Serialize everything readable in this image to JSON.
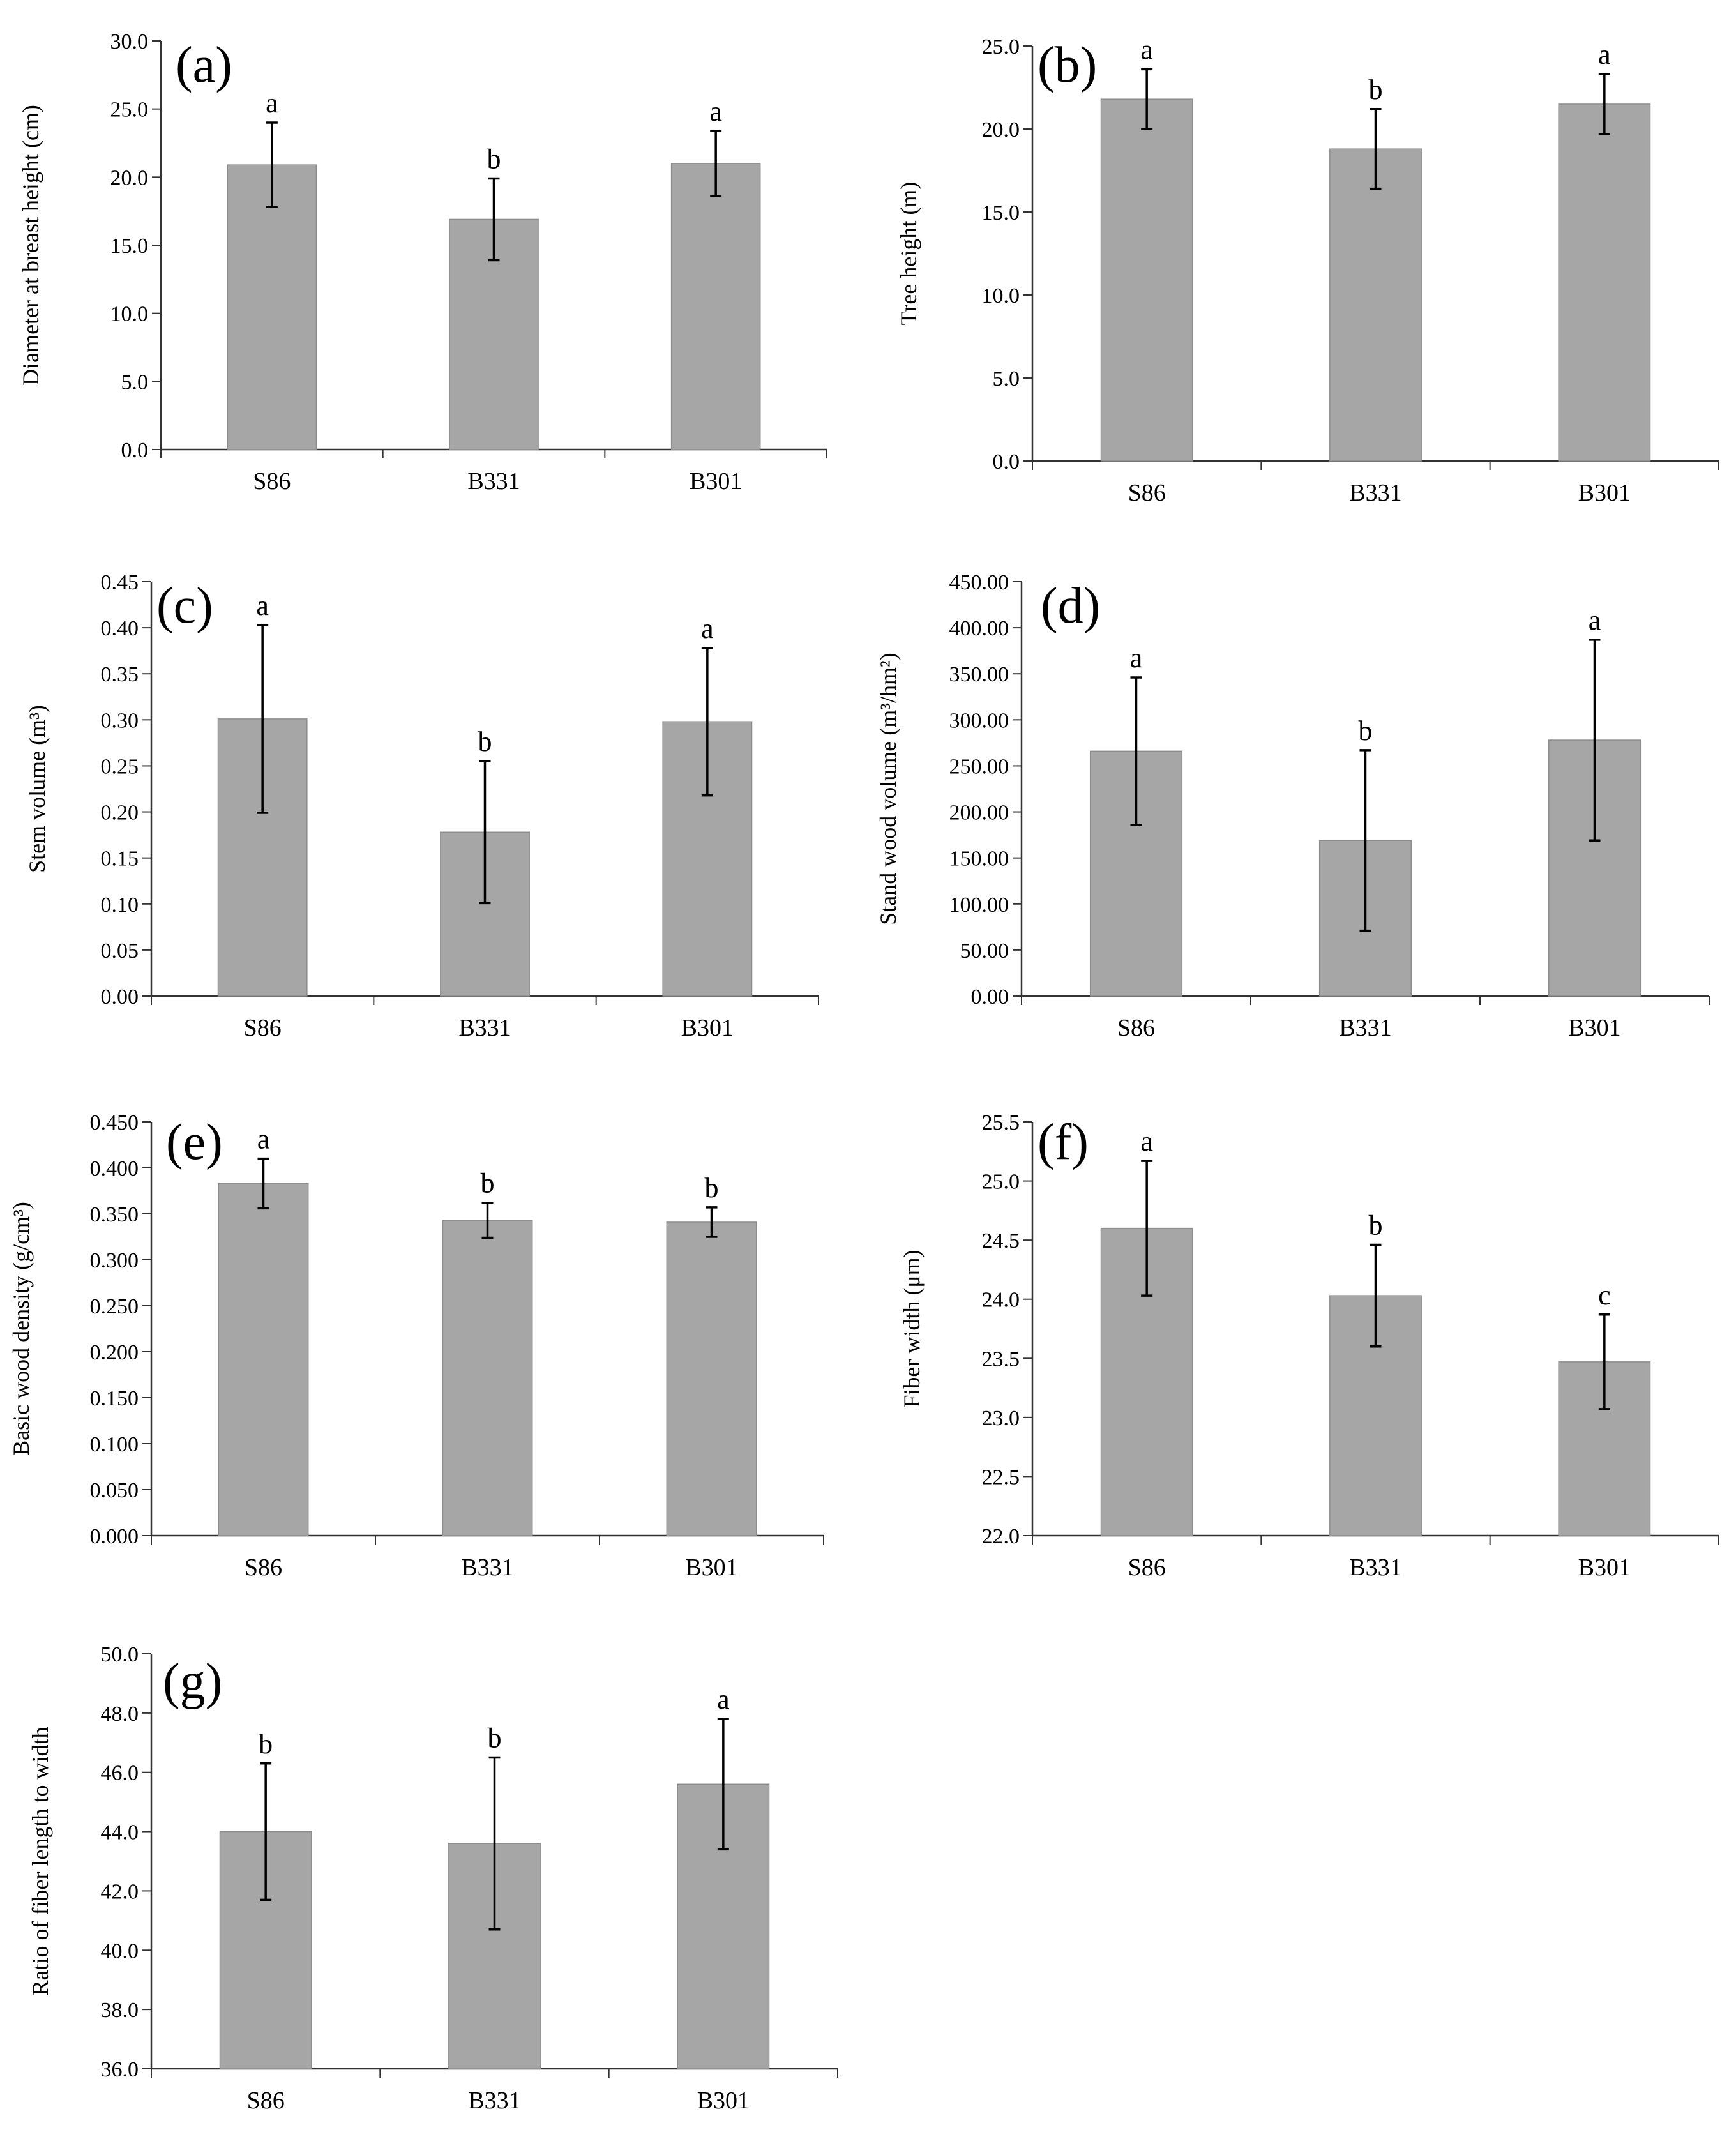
{
  "figure": {
    "colors": {
      "bar": "#a6a6a6",
      "bar_edge": "#8c8c8c",
      "axis": "#333333",
      "error": "#000000"
    }
  },
  "chart_data": [
    {
      "id": "a",
      "panel_label": "(a)",
      "type": "bar",
      "ylabel": "Diameter at breast height (cm)",
      "categories": [
        "S86",
        "B331",
        "B301"
      ],
      "values": [
        20.9,
        16.9,
        21.0
      ],
      "errors": [
        3.1,
        3.0,
        2.4
      ],
      "letters": [
        "a",
        "b",
        "a"
      ],
      "ylim": [
        0,
        30
      ],
      "yticks": [
        "0.0",
        "5.0",
        "10.0",
        "15.0",
        "20.0",
        "25.0",
        "30.0"
      ]
    },
    {
      "id": "b",
      "panel_label": "(b)",
      "type": "bar",
      "ylabel": "Tree height (m)",
      "categories": [
        "S86",
        "B331",
        "B301"
      ],
      "values": [
        21.8,
        18.8,
        21.5
      ],
      "errors": [
        1.8,
        2.4,
        1.8
      ],
      "letters": [
        "a",
        "b",
        "a"
      ],
      "ylim": [
        0,
        25
      ],
      "yticks": [
        "0.0",
        "5.0",
        "10.0",
        "15.0",
        "20.0",
        "25.0"
      ]
    },
    {
      "id": "c",
      "panel_label": "(c)",
      "type": "bar",
      "ylabel": "Stem volume (m³)",
      "categories": [
        "S86",
        "B331",
        "B301"
      ],
      "values": [
        0.301,
        0.178,
        0.298
      ],
      "errors": [
        0.102,
        0.077,
        0.08
      ],
      "letters": [
        "a",
        "b",
        "a"
      ],
      "ylim": [
        0,
        0.45
      ],
      "yticks": [
        "0.00",
        "0.05",
        "0.10",
        "0.15",
        "0.20",
        "0.25",
        "0.30",
        "0.35",
        "0.40",
        "0.45"
      ]
    },
    {
      "id": "d",
      "panel_label": "(d)",
      "type": "bar",
      "ylabel": "Stand wood volume (m³/hm²)",
      "categories": [
        "S86",
        "B331",
        "B301"
      ],
      "values": [
        266,
        169,
        278
      ],
      "errors": [
        80,
        98,
        109
      ],
      "letters": [
        "a",
        "b",
        "a"
      ],
      "ylim": [
        0,
        450
      ],
      "yticks": [
        "0.00",
        "50.00",
        "100.00",
        "150.00",
        "200.00",
        "250.00",
        "300.00",
        "350.00",
        "400.00",
        "450.00"
      ]
    },
    {
      "id": "e",
      "panel_label": "(e)",
      "type": "bar",
      "ylabel": "Basic wood density (g/cm³)",
      "categories": [
        "S86",
        "B331",
        "B301"
      ],
      "values": [
        0.383,
        0.343,
        0.341
      ],
      "errors": [
        0.027,
        0.019,
        0.016
      ],
      "letters": [
        "a",
        "b",
        "b"
      ],
      "ylim": [
        0,
        0.45
      ],
      "yticks": [
        "0.000",
        "0.050",
        "0.100",
        "0.150",
        "0.200",
        "0.250",
        "0.300",
        "0.350",
        "0.400",
        "0.450"
      ]
    },
    {
      "id": "f",
      "panel_label": "(f)",
      "type": "bar",
      "ylabel": "Fiber width (μm)",
      "categories": [
        "S86",
        "B331",
        "B301"
      ],
      "values": [
        24.6,
        24.03,
        23.47
      ],
      "errors": [
        0.57,
        0.43,
        0.4
      ],
      "letters": [
        "a",
        "b",
        "c"
      ],
      "ylim": [
        22,
        25.5
      ],
      "yticks": [
        "22.0",
        "22.5",
        "23.0",
        "23.5",
        "24.0",
        "24.5",
        "25.0",
        "25.5"
      ]
    },
    {
      "id": "g",
      "panel_label": "(g)",
      "type": "bar",
      "ylabel": "Ratio of fiber length to width",
      "categories": [
        "S86",
        "B331",
        "B301"
      ],
      "values": [
        44.0,
        43.6,
        45.6
      ],
      "errors": [
        2.3,
        2.9,
        2.2
      ],
      "letters": [
        "b",
        "b",
        "a"
      ],
      "ylim": [
        36,
        50
      ],
      "yticks": [
        "36.0",
        "38.0",
        "40.0",
        "42.0",
        "44.0",
        "46.0",
        "48.0",
        "50.0"
      ]
    }
  ]
}
